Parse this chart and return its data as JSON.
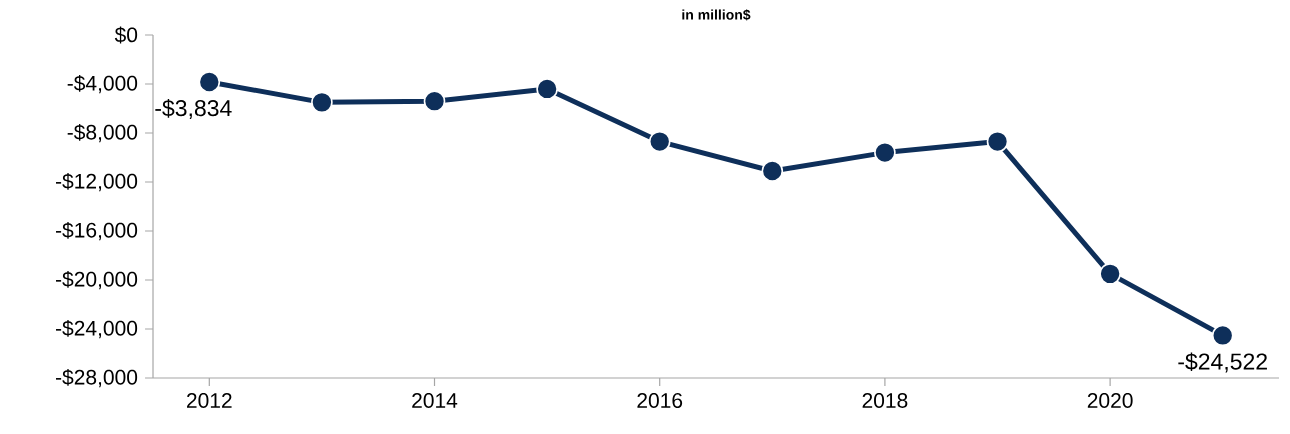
{
  "chart_data": {
    "type": "line",
    "title": "in million$",
    "x": [
      2012,
      2013,
      2014,
      2015,
      2016,
      2017,
      2018,
      2019,
      2020,
      2021
    ],
    "series": [
      {
        "color": "#0e2f5a",
        "values": [
          -3834,
          -5500,
          -5400,
          -4400,
          -8700,
          -11100,
          -9600,
          -8700,
          -19500,
          -24522
        ],
        "value_labels": [
          "-$3,834",
          null,
          null,
          null,
          null,
          null,
          null,
          null,
          null,
          "-$24,522"
        ]
      }
    ],
    "xlim": [
      2011.5,
      2021.5
    ],
    "xticks": [
      2012,
      2014,
      2016,
      2018,
      2020
    ],
    "ylim": [
      -28000,
      0
    ],
    "yticks": [
      {
        "value": -28000,
        "label": "-$28,000"
      },
      {
        "value": -24000,
        "label": "-$24,000"
      },
      {
        "value": -20000,
        "label": "-$20,000"
      },
      {
        "value": -16000,
        "label": "-$16,000"
      },
      {
        "value": -12000,
        "label": "-$12,000"
      },
      {
        "value": -8000,
        "label": "-$8,000"
      },
      {
        "value": -4000,
        "label": "-$4,000"
      },
      {
        "value": 0,
        "label": "$0"
      }
    ],
    "grid": false,
    "marker": "circle",
    "line_style": "solid"
  }
}
